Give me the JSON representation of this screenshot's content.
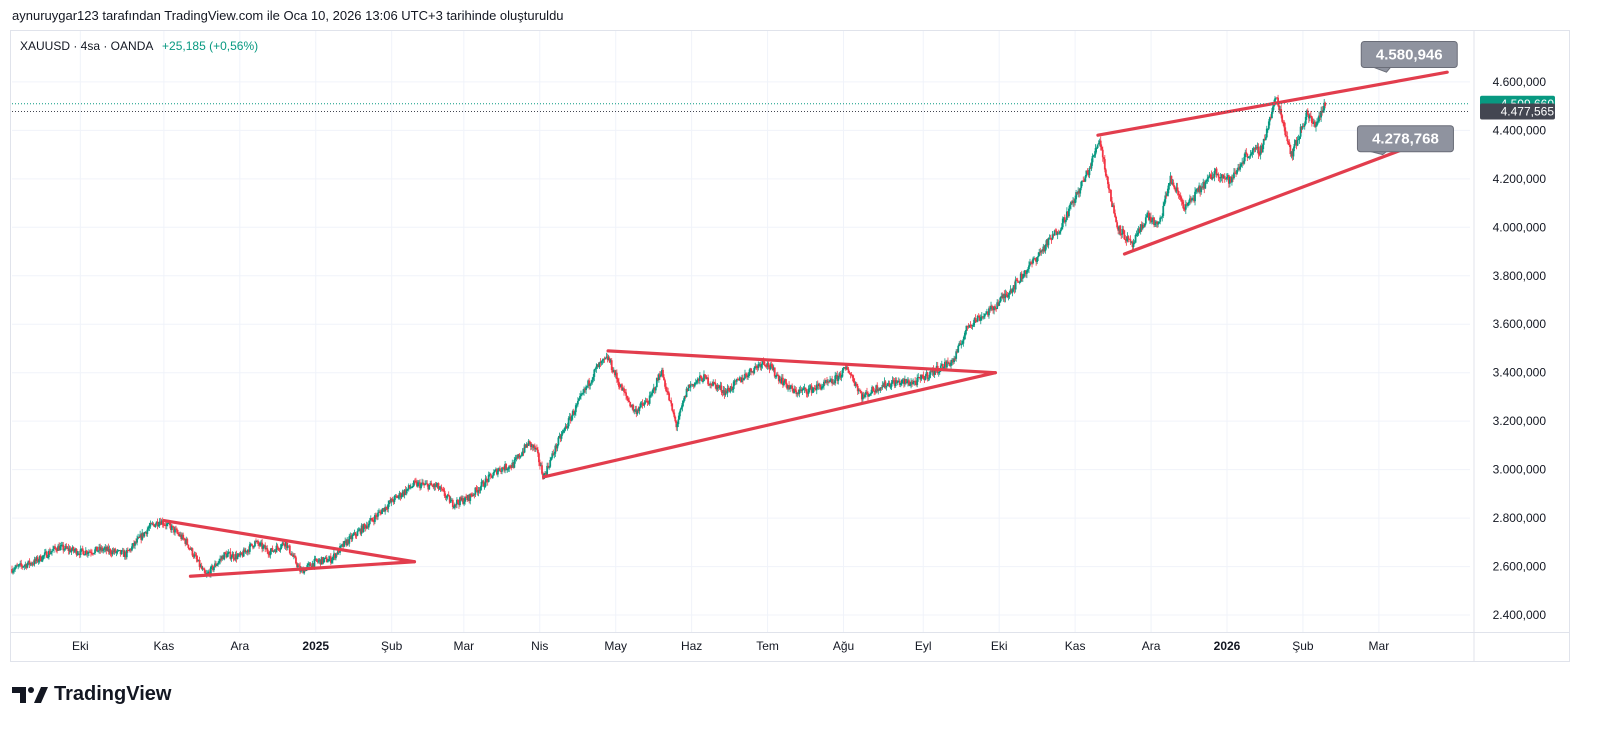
{
  "header": {
    "attribution": "aynuruygar123 tarafından TradingView.com ile Oca 10, 2026 13:06 UTC+3 tarihinde oluşturuldu"
  },
  "legend": {
    "symbol": "XAUUSD · 4sa · OANDA",
    "change": "+25,185 (+0,56%)"
  },
  "brand": {
    "name": "TradingView"
  },
  "colors": {
    "up": "#089981",
    "down": "#f23645",
    "line": "#e23d4d",
    "grid": "#f0f3fa",
    "priceBadge": "#089981",
    "lastBadge": "#434651",
    "callout": "#8f939f"
  },
  "chart_data": {
    "type": "candlestick",
    "title": "XAUUSD · 4sa · OANDA",
    "x_labels": [
      {
        "label": "Eki",
        "t": 0.9
      },
      {
        "label": "Kas",
        "t": 2.0
      },
      {
        "label": "Ara",
        "t": 3.0
      },
      {
        "label": "2025",
        "t": 4.0,
        "bold": true
      },
      {
        "label": "Şub",
        "t": 5.0
      },
      {
        "label": "Mar",
        "t": 5.95
      },
      {
        "label": "Nis",
        "t": 6.95
      },
      {
        "label": "May",
        "t": 7.95
      },
      {
        "label": "Haz",
        "t": 8.95
      },
      {
        "label": "Tem",
        "t": 9.95
      },
      {
        "label": "Ağu",
        "t": 10.95
      },
      {
        "label": "Eyl",
        "t": 12.0
      },
      {
        "label": "Eki",
        "t": 13.0
      },
      {
        "label": "Kas",
        "t": 14.0
      },
      {
        "label": "Ara",
        "t": 15.0
      },
      {
        "label": "2026",
        "t": 16.0,
        "bold": true
      },
      {
        "label": "Şub",
        "t": 17.0
      },
      {
        "label": "Mar",
        "t": 18.0
      }
    ],
    "y_ticks": [
      2400000,
      2600000,
      2800000,
      3000000,
      3200000,
      3400000,
      3600000,
      3800000,
      4000000,
      4200000,
      4400000,
      4600000
    ],
    "y_tick_labels": [
      "2.400,000",
      "2.600,000",
      "2.800,000",
      "3.000,000",
      "3.200,000",
      "3.400,000",
      "3.600,000",
      "3.800,000",
      "4.000,000",
      "4.200,000",
      "4.400,000",
      "4.600,000"
    ],
    "ylim": [
      2330000,
      4810000
    ],
    "xlim": [
      0.0,
      19.2
    ],
    "price_path": [
      [
        0.0,
        2590000
      ],
      [
        0.3,
        2620000
      ],
      [
        0.6,
        2680000
      ],
      [
        0.9,
        2660000
      ],
      [
        1.2,
        2670000
      ],
      [
        1.5,
        2650000
      ],
      [
        1.8,
        2760000
      ],
      [
        1.95,
        2790000
      ],
      [
        2.1,
        2760000
      ],
      [
        2.3,
        2700000
      ],
      [
        2.55,
        2560000
      ],
      [
        2.8,
        2650000
      ],
      [
        3.0,
        2640000
      ],
      [
        3.2,
        2700000
      ],
      [
        3.4,
        2660000
      ],
      [
        3.6,
        2700000
      ],
      [
        3.8,
        2580000
      ],
      [
        4.0,
        2620000
      ],
      [
        4.2,
        2630000
      ],
      [
        4.4,
        2700000
      ],
      [
        4.7,
        2780000
      ],
      [
        5.0,
        2870000
      ],
      [
        5.3,
        2940000
      ],
      [
        5.6,
        2930000
      ],
      [
        5.8,
        2860000
      ],
      [
        6.0,
        2880000
      ],
      [
        6.2,
        2940000
      ],
      [
        6.4,
        3000000
      ],
      [
        6.6,
        3020000
      ],
      [
        6.8,
        3110000
      ],
      [
        6.9,
        3080000
      ],
      [
        7.0,
        2970000
      ],
      [
        7.2,
        3120000
      ],
      [
        7.5,
        3300000
      ],
      [
        7.7,
        3420000
      ],
      [
        7.85,
        3460000
      ],
      [
        8.0,
        3350000
      ],
      [
        8.2,
        3240000
      ],
      [
        8.4,
        3290000
      ],
      [
        8.55,
        3410000
      ],
      [
        8.75,
        3180000
      ],
      [
        8.9,
        3340000
      ],
      [
        9.1,
        3380000
      ],
      [
        9.4,
        3320000
      ],
      [
        9.7,
        3400000
      ],
      [
        9.9,
        3450000
      ],
      [
        10.1,
        3380000
      ],
      [
        10.3,
        3320000
      ],
      [
        10.5,
        3330000
      ],
      [
        10.8,
        3360000
      ],
      [
        11.0,
        3420000
      ],
      [
        11.2,
        3300000
      ],
      [
        11.4,
        3340000
      ],
      [
        11.6,
        3360000
      ],
      [
        11.9,
        3360000
      ],
      [
        12.1,
        3400000
      ],
      [
        12.4,
        3450000
      ],
      [
        12.6,
        3600000
      ],
      [
        12.9,
        3660000
      ],
      [
        13.2,
        3760000
      ],
      [
        13.5,
        3880000
      ],
      [
        13.8,
        4000000
      ],
      [
        14.0,
        4120000
      ],
      [
        14.2,
        4250000
      ],
      [
        14.32,
        4370000
      ],
      [
        14.45,
        4150000
      ],
      [
        14.55,
        4010000
      ],
      [
        14.75,
        3920000
      ],
      [
        14.95,
        4050000
      ],
      [
        15.1,
        4000000
      ],
      [
        15.25,
        4200000
      ],
      [
        15.45,
        4080000
      ],
      [
        15.65,
        4160000
      ],
      [
        15.85,
        4230000
      ],
      [
        16.05,
        4190000
      ],
      [
        16.25,
        4300000
      ],
      [
        16.45,
        4320000
      ],
      [
        16.65,
        4540000
      ],
      [
        16.85,
        4300000
      ],
      [
        16.95,
        4380000
      ],
      [
        17.05,
        4470000
      ],
      [
        17.15,
        4420000
      ],
      [
        17.3,
        4509660
      ]
    ],
    "series_color_up": "#089981",
    "series_color_down": "#f23645",
    "drawings": [
      {
        "name": "triangle-1-upper",
        "from": [
          2.0,
          2790000
        ],
        "to": [
          5.3,
          2620000
        ]
      },
      {
        "name": "triangle-1-lower",
        "from": [
          2.35,
          2560000
        ],
        "to": [
          5.3,
          2620000
        ]
      },
      {
        "name": "triangle-2-upper",
        "from": [
          7.85,
          3490000
        ],
        "to": [
          12.95,
          3400000
        ]
      },
      {
        "name": "triangle-2-lower",
        "from": [
          7.0,
          2970000
        ],
        "to": [
          12.95,
          3400000
        ]
      },
      {
        "name": "channel-upper",
        "from": [
          14.3,
          4380000
        ],
        "to": [
          18.9,
          4640000
        ]
      },
      {
        "name": "channel-lower",
        "from": [
          14.65,
          3890000
        ],
        "to": [
          18.9,
          4390000
        ]
      }
    ],
    "price_badges": [
      {
        "label": "4.509,660",
        "value": 4509660,
        "kind": "current"
      },
      {
        "label": "4.477,565",
        "value": 4477565,
        "kind": "last"
      }
    ],
    "callouts": [
      {
        "label": "4.580,946",
        "value": 4580946,
        "anchor": [
          18.4,
          4610000
        ]
      },
      {
        "label": "4.278,768",
        "value": 4278768,
        "anchor": [
          18.35,
          4320000
        ]
      }
    ],
    "y_axis_label_text": "4.600,000"
  }
}
